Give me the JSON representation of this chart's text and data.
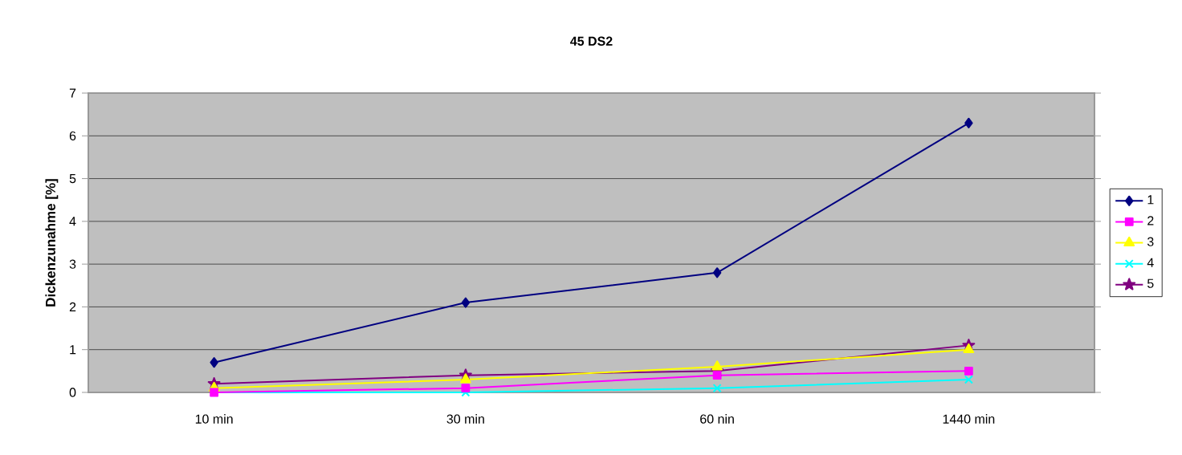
{
  "chart_data": {
    "type": "line",
    "title": "45 DS2",
    "ylabel": "Dickenzunahme [%]",
    "categories": [
      "10 min",
      "30 min",
      "60 nin",
      "1440 min"
    ],
    "ylim": [
      0,
      7
    ],
    "yticks": [
      0,
      1,
      2,
      3,
      4,
      5,
      6,
      7
    ],
    "grid": "y",
    "legend": "right",
    "series": [
      {
        "name": "1",
        "color": "#000080",
        "marker": "diamond",
        "values": [
          0.7,
          2.1,
          2.8,
          6.3
        ]
      },
      {
        "name": "2",
        "color": "#ff00ff",
        "marker": "square",
        "values": [
          0,
          0.1,
          0.4,
          0.5
        ]
      },
      {
        "name": "3",
        "color": "#ffff00",
        "marker": "triangle",
        "values": [
          0.1,
          0.3,
          0.6,
          1.0
        ]
      },
      {
        "name": "4",
        "color": "#00ffff",
        "marker": "cross",
        "values": [
          0,
          0,
          0.1,
          0.3
        ]
      },
      {
        "name": "5",
        "color": "#800080",
        "marker": "star",
        "values": [
          0.2,
          0.4,
          0.5,
          1.1
        ]
      }
    ]
  }
}
